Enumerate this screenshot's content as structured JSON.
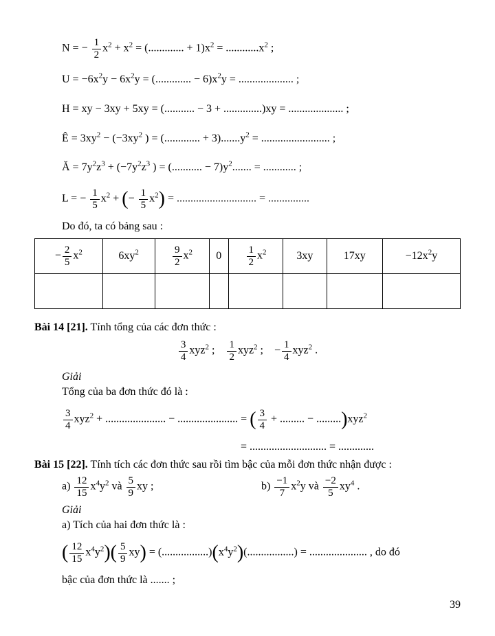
{
  "equations": {
    "N": {
      "lhs": "N = ",
      "frac_num": "1",
      "frac_den": "2",
      "rest1": "x",
      "rest2": " + x",
      "rest3": " = (............. + 1)x",
      "rest4": " = ............x",
      "rest5": " ;"
    },
    "U": {
      "text1": "U = −6x",
      "text2": "y − 6x",
      "text3": "y = (............. − 6)x",
      "text4": "y = .................... ;"
    },
    "H": {
      "text": "H = xy − 3xy + 5xy = (........... − 3 + ..............)xy = .................... ;"
    },
    "E": {
      "text1": "Ê = 3xy",
      "text2": " − (−3xy",
      "text3": " ) = (............. + 3).......y",
      "text4": " = ......................... ;"
    },
    "A": {
      "text1": "Ă = 7y",
      "text2": "z",
      "text3": " + (−7y",
      "text4": "z",
      "text5": " ) = (........... − 7)y",
      "text6": "....... = ............ ;"
    },
    "L": {
      "lhs": "L = ",
      "f1n": "1",
      "f1d": "5",
      "mid1": "x",
      "mid2": " + ",
      "f2n": "1",
      "f2d": "5",
      "mid3": "x",
      "rest": " = ............................. = ..............."
    }
  },
  "intro_after_eq": "Do đó, ta có bảng sau :",
  "table": {
    "row1": [
      {
        "type": "frac_neg",
        "num": "2",
        "den": "5",
        "suffix": "x",
        "sup": "2"
      },
      {
        "type": "plain",
        "text": "6xy",
        "sup": "2"
      },
      {
        "type": "frac",
        "num": "9",
        "den": "2",
        "suffix": "x",
        "sup": "2"
      },
      {
        "type": "plain",
        "text": "0",
        "sup": ""
      },
      {
        "type": "frac",
        "num": "1",
        "den": "2",
        "suffix": "x",
        "sup": "2"
      },
      {
        "type": "plain",
        "text": "3xy",
        "sup": ""
      },
      {
        "type": "plain",
        "text": "17xy",
        "sup": ""
      },
      {
        "type": "plain",
        "text": "−12x",
        "sup": "2",
        "suffix2": "y"
      }
    ]
  },
  "bai14": {
    "heading_bold": "Bài 14 [21].",
    "heading_rest": " Tính tổng của các đơn thức :",
    "expr": {
      "f1n": "3",
      "f1d": "4",
      "f2n": "1",
      "f2d": "2",
      "f3n": "1",
      "f3d": "4"
    },
    "giai": "Giải",
    "line1": "Tổng của ba đơn thức đó là :",
    "sum_f1n": "3",
    "sum_f1d": "4",
    "sum_mid": "xyz",
    "sum_rest1": " + ...................... − ...................... = ",
    "sum_inner_f": "3",
    "sum_inner_d": "4",
    "sum_rest2": " + ......... − .........",
    "sum_trail": "xyz",
    "line_eq2": "= ............................ = ............."
  },
  "bai15": {
    "heading_bold": "Bài 15 [22].",
    "heading_rest": " Tính tích các đơn thức sau rồi tìm bậc của mỗi đơn thức nhận được :",
    "a_f1n": "12",
    "a_f1d": "15",
    "a_mid1": "x",
    "a_mid2": "y",
    "a_and": " và ",
    "a_f2n": "5",
    "a_f2d": "9",
    "a_suffix": "xy ;",
    "b_f1n": "−1",
    "b_f1d": "7",
    "b_mid1": "x",
    "b_mid2": "y và ",
    "b_f2n": "−2",
    "b_f2d": "5",
    "b_suffix": "xy",
    "giai": "Giải",
    "line_a1": "a) Tích của hai đơn thức là :",
    "prod_f1n": "12",
    "prod_f1d": "15",
    "prod_t1": "x",
    "prod_t2": "y",
    "prod_f2n": "5",
    "prod_f2d": "9",
    "prod_t3": "xy",
    "prod_rest1": " = (.................)",
    "prod_rest2": "x",
    "prod_rest3": "y",
    "prod_rest4": "(.................) = ..................... ,  do đó",
    "line_a2": "bậc của đơn thức là ....... ;"
  },
  "page": "39"
}
